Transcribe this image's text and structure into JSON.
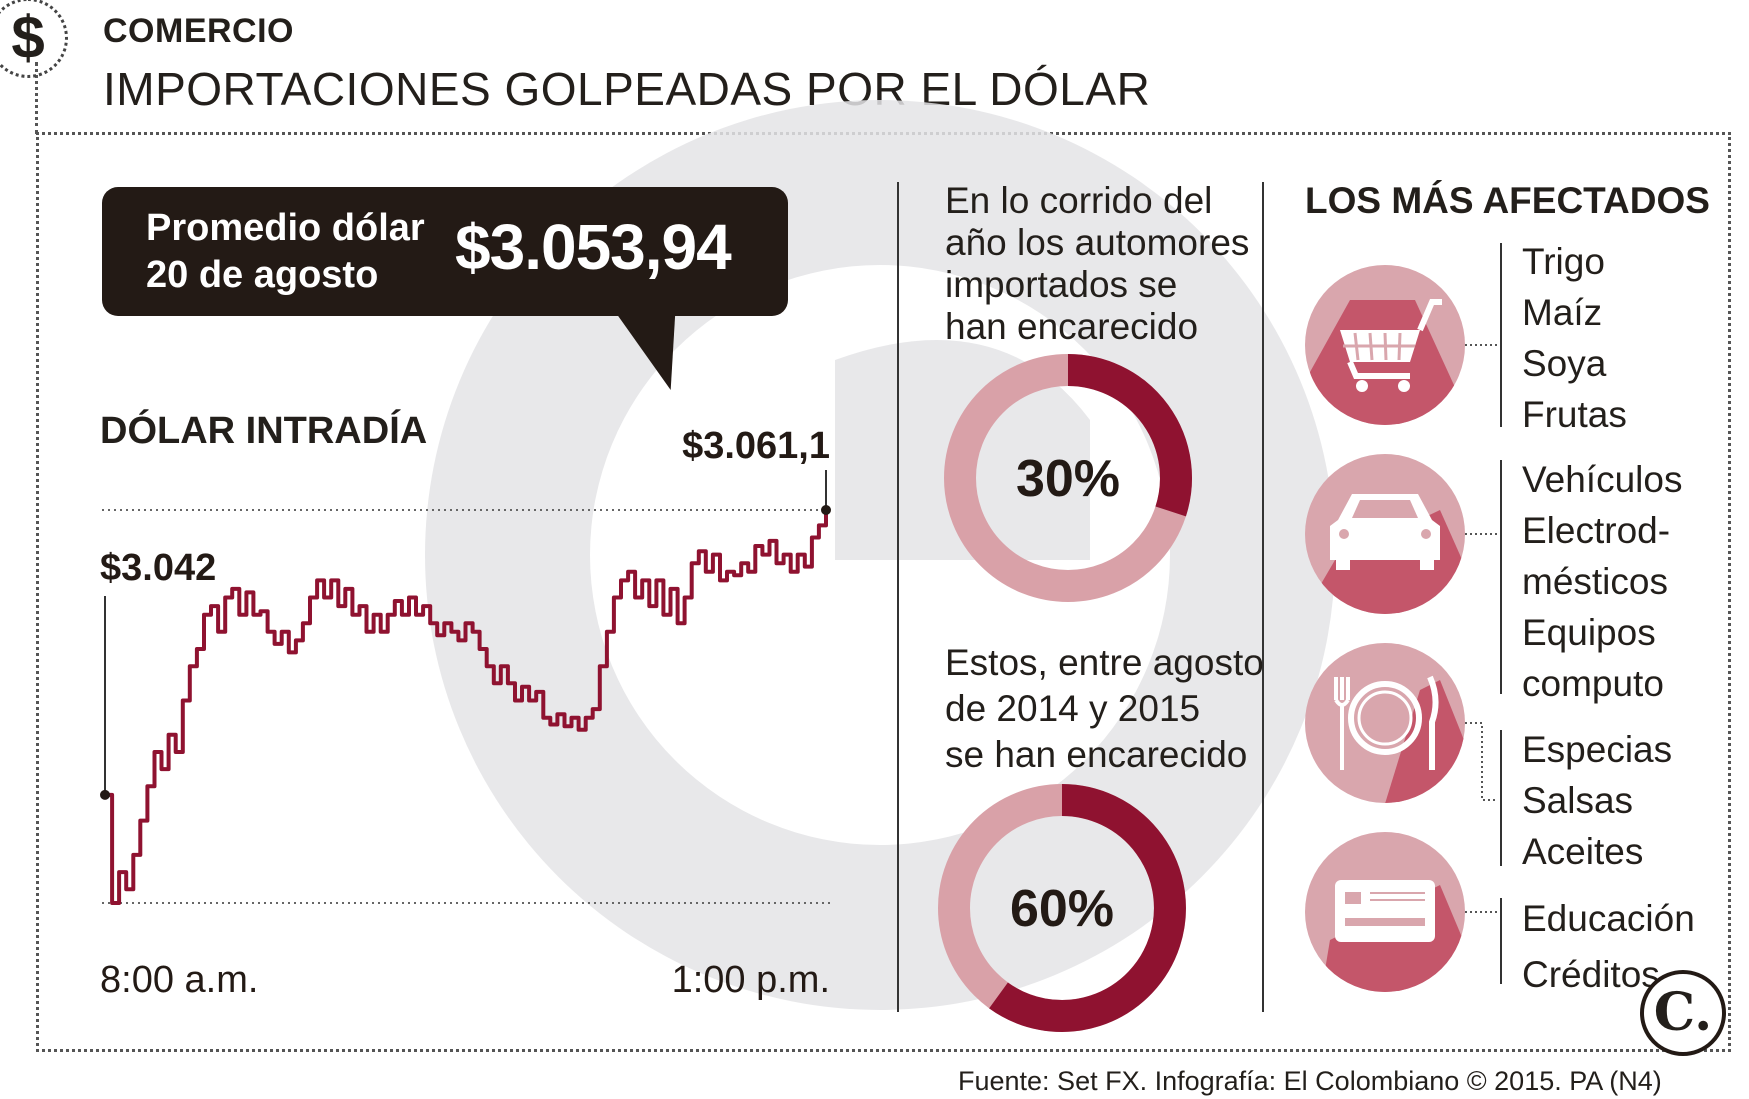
{
  "header": {
    "section_label": "COMERCIO",
    "title": "IMPORTACIONES GOLPEADAS POR EL DÓLAR",
    "icon": "dollar-icon"
  },
  "callout": {
    "label": "Promedio dólar\n20 de agosto",
    "value": "$3.053,94"
  },
  "chart_data": {
    "type": "line",
    "title": "DÓLAR INTRADÍA",
    "x_tick_labels": [
      "8:00 a.m.",
      "1:00 p.m."
    ],
    "annotations": [
      {
        "label": "$3.042",
        "value": 3042
      },
      {
        "label": "$3.061,1",
        "value": 3061.1
      }
    ],
    "ylim": [
      3038.2,
      3061.1
    ],
    "grid": false,
    "color": "#8f1230",
    "series": [
      {
        "values": [
          3044.5,
          3038.2,
          3040,
          3039,
          3041,
          3043,
          3045,
          3047,
          3046,
          3048,
          3047,
          3050,
          3052,
          3053,
          3055,
          3055.5,
          3054,
          3056,
          3056.5,
          3055,
          3056.3,
          3055,
          3055.2,
          3054,
          3053.3,
          3054,
          3052.8,
          3053.5,
          3054.5,
          3056,
          3057,
          3056,
          3057,
          3055.5,
          3056.5,
          3055,
          3055.5,
          3054,
          3055,
          3054,
          3055,
          3055.8,
          3055,
          3056,
          3055,
          3055.5,
          3054.5,
          3053.8,
          3054.5,
          3054,
          3053.5,
          3054.5,
          3054,
          3053,
          3052,
          3051,
          3052,
          3051,
          3050,
          3050.8,
          3050,
          3050.5,
          3049,
          3048.6,
          3049.2,
          3048.5,
          3049,
          3048.3,
          3049,
          3049.5,
          3052,
          3054,
          3056,
          3057,
          3057.5,
          3056,
          3057,
          3055.5,
          3057,
          3055,
          3056.5,
          3054.5,
          3056,
          3058,
          3058.7,
          3057.5,
          3058.5,
          3057,
          3057.5,
          3057.3,
          3058,
          3057.5,
          3059,
          3058.5,
          3059.3,
          3058,
          3058.5,
          3057.5,
          3058.5,
          3057.8,
          3059.5,
          3060.2,
          3061.1
        ]
      }
    ]
  },
  "stats": [
    {
      "text": "En lo corrido del\naño los automores\nimportados se\nhan encarecido",
      "value": 30,
      "label": "30%"
    },
    {
      "text": "Estos, entre agosto\nde 2014 y 2015\nse han encarecido",
      "value": 60,
      "label": "60%"
    }
  ],
  "affected": {
    "title": "LOS MÁS AFECTADOS",
    "groups": [
      {
        "icon": "shopping-cart-icon",
        "items": [
          "Trigo",
          "Maíz",
          "Soya",
          "Frutas"
        ]
      },
      {
        "icon": "car-icon",
        "items": [
          "Vehículos",
          "Electrod-",
          "mésticos",
          "Equipos",
          "computo"
        ]
      },
      {
        "icon": "plate-cutlery-icon",
        "items": [
          "Especias",
          "Salsas",
          "Aceites"
        ]
      },
      {
        "icon": "credit-card-icon",
        "items": [
          "Educación",
          "Créditos"
        ]
      }
    ]
  },
  "colors": {
    "accent": "#8f1230",
    "ring_light": "#d9a1a8",
    "icon_circle": "#d9a6ad",
    "icon_shadow": "#c4566a",
    "dark": "#231a15"
  },
  "source": "Fuente: Set FX. Infografía: El Colombiano © 2015. PA (N4)",
  "logo": {
    "letter": "C."
  }
}
